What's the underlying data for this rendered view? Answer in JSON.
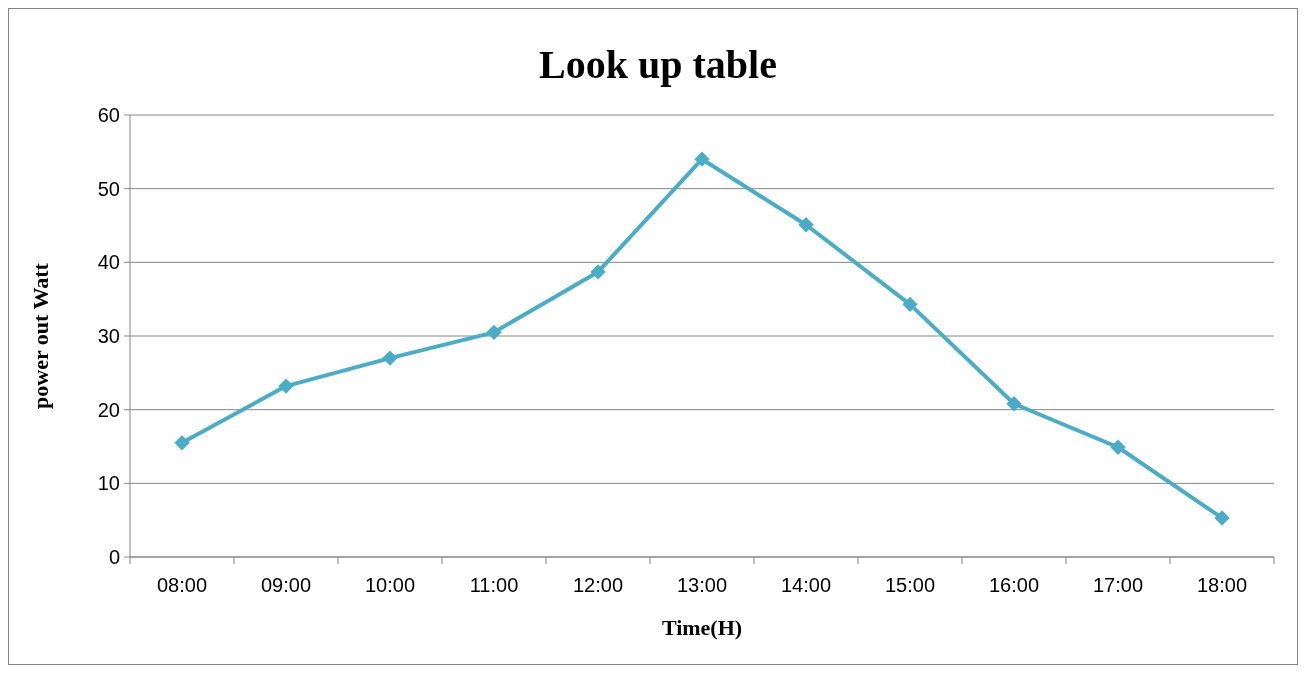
{
  "chart_data": {
    "type": "line",
    "title": "Look up table",
    "xlabel": "Time(H)",
    "ylabel": "power out Watt",
    "categories": [
      "08:00",
      "09:00",
      "10:00",
      "11:00",
      "12:00",
      "13:00",
      "14:00",
      "15:00",
      "16:00",
      "17:00",
      "18:00"
    ],
    "series": [
      {
        "color": "#4bacc6",
        "values": [
          15.5,
          23.2,
          27.0,
          30.5,
          38.7,
          54.0,
          45.1,
          34.3,
          20.8,
          14.9,
          5.3
        ]
      }
    ],
    "ylim": [
      0,
      60
    ],
    "yticks": [
      0,
      10,
      20,
      30,
      40,
      50,
      60
    ],
    "grid": "y",
    "marker": "diamond",
    "line_style": "solid"
  }
}
